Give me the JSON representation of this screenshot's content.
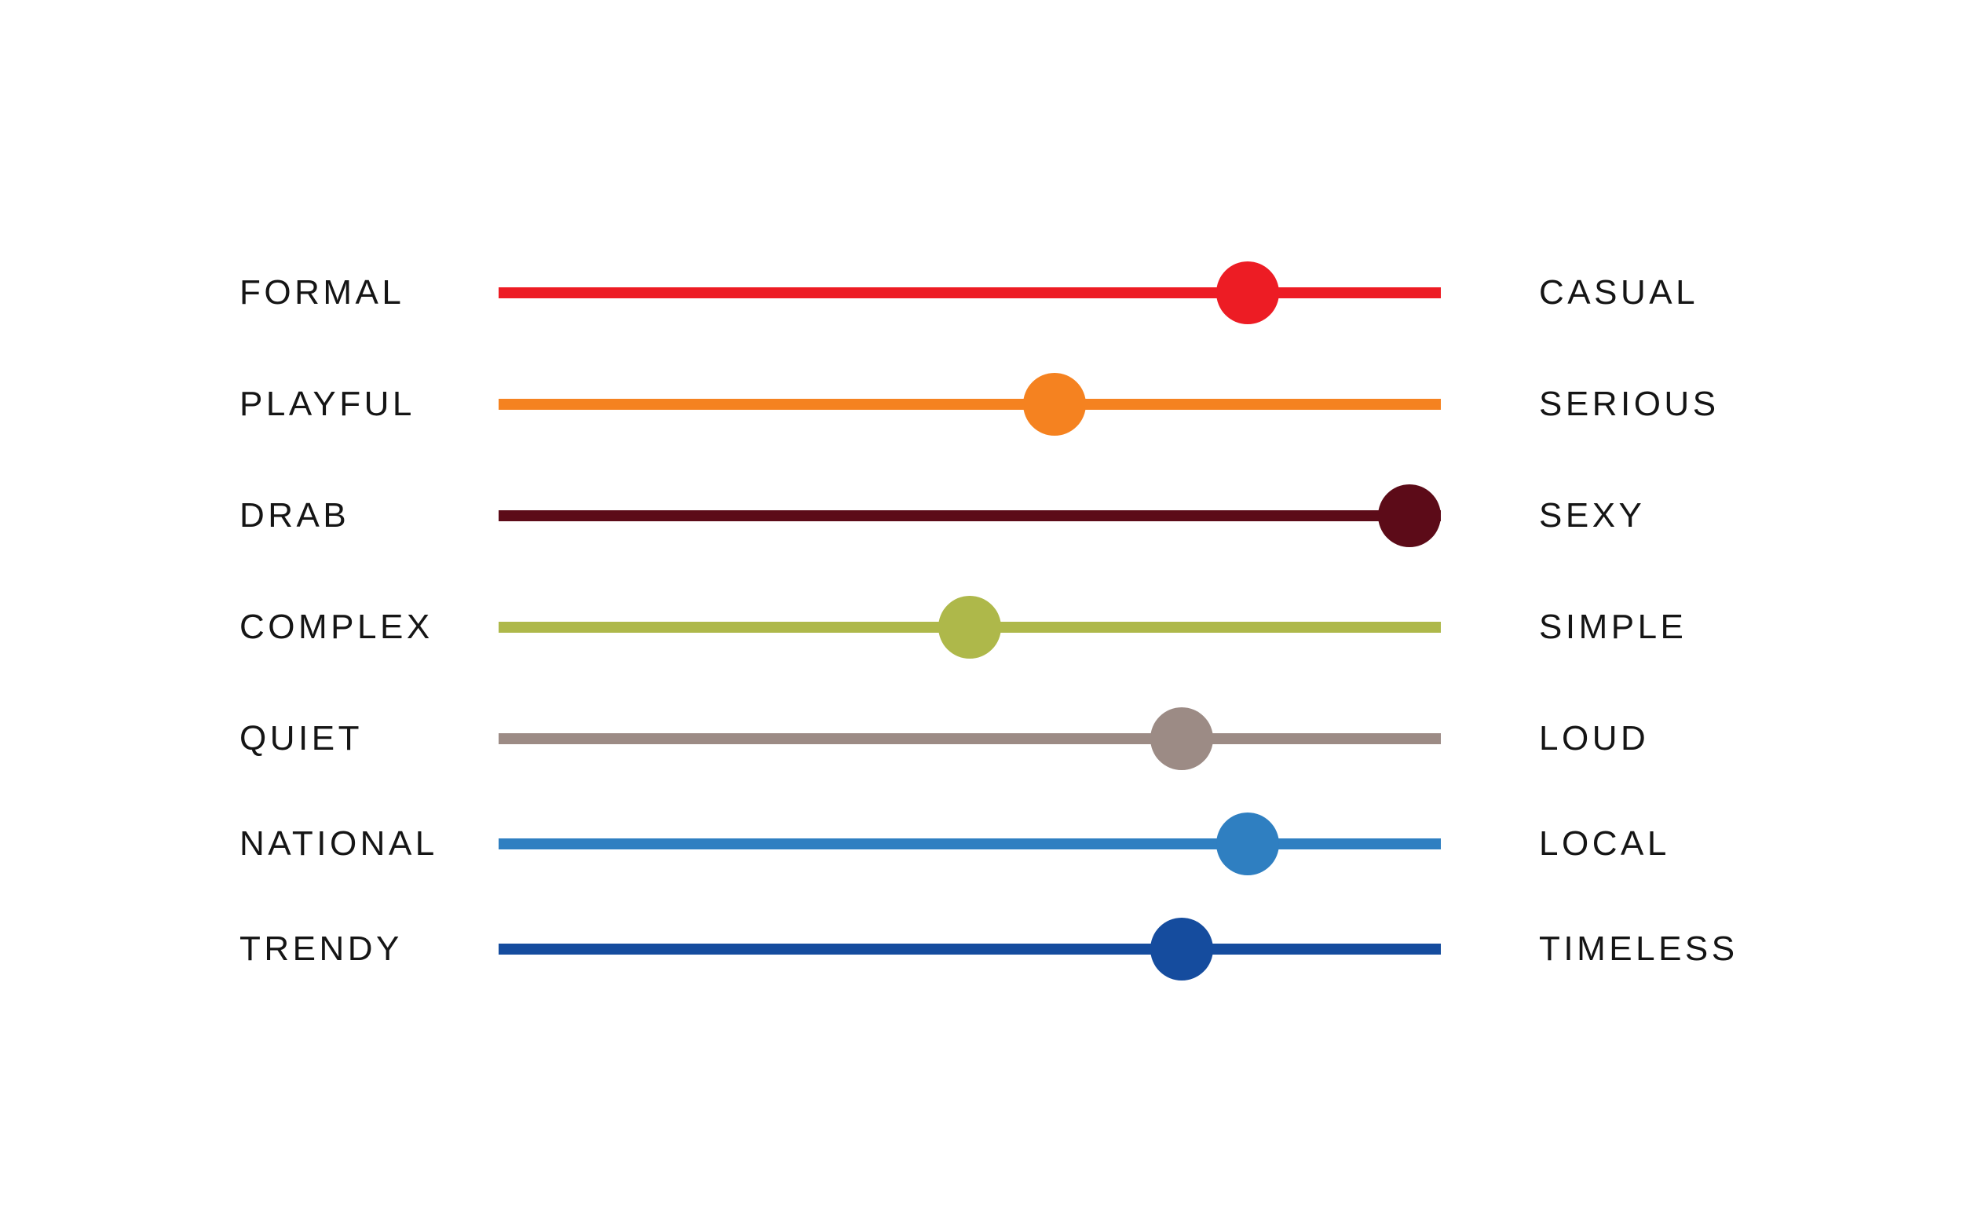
{
  "scales": [
    {
      "left_label": "FORMAL",
      "right_label": "CASUAL",
      "value": 0.795,
      "color": "#ED1C24"
    },
    {
      "left_label": "PLAYFUL",
      "right_label": "SERIOUS",
      "value": 0.59,
      "color": "#F58220"
    },
    {
      "left_label": "DRAB",
      "right_label": "SEXY",
      "value": 0.967,
      "color": "#5C0B18"
    },
    {
      "left_label": "COMPLEX",
      "right_label": "SIMPLE",
      "value": 0.5,
      "color": "#AEB84A"
    },
    {
      "left_label": "QUIET",
      "right_label": "LOUD",
      "value": 0.725,
      "color": "#9C8B85"
    },
    {
      "left_label": "NATIONAL",
      "right_label": "LOCAL",
      "value": 0.795,
      "color": "#2F7FC1"
    },
    {
      "left_label": "TRENDY",
      "right_label": "TIMELESS",
      "value": 0.725,
      "color": "#154C9E"
    }
  ]
}
